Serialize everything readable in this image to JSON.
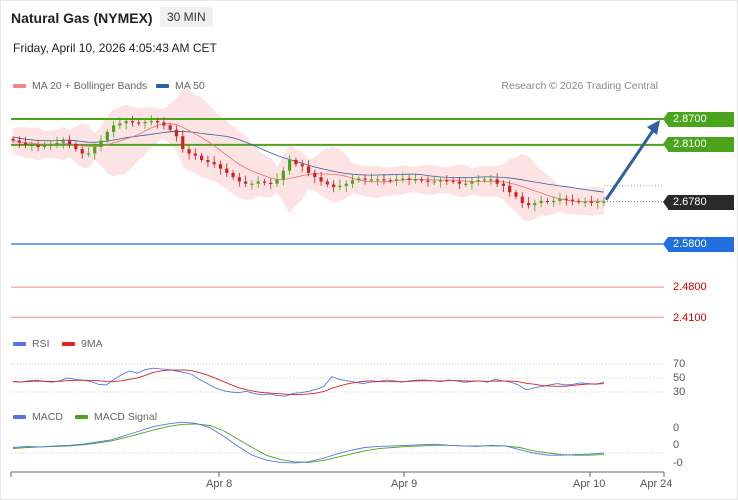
{
  "header": {
    "title": "Natural Gas (NYMEX)",
    "timeframe": "30 MIN",
    "datetime": "Friday, April 10, 2026 4:05:43 AM CET"
  },
  "legend": {
    "ma20_label": "MA 20 + Bollinger Bands",
    "ma50_label": "MA 50",
    "credit": "Research © 2026 Trading Central"
  },
  "levels": {
    "r2": "2.8700",
    "r1": "2.8100",
    "last": "2.6780",
    "s1": "2.5800",
    "s2": "2.4800",
    "s3": "2.4100"
  },
  "rsi": {
    "label": "RSI",
    "ma_label": "9MA",
    "ticks": [
      "70",
      "50",
      "30"
    ]
  },
  "macd": {
    "label": "MACD",
    "signal_label": "MACD Signal",
    "ticks": [
      "0",
      "0",
      "-0"
    ]
  },
  "xaxis": {
    "labels": [
      "Apr 8",
      "Apr 9",
      "Apr 10",
      "Apr 24"
    ]
  },
  "colors": {
    "resistance": "#4aa51c",
    "support": "#1f6fe0",
    "support_lower": "#e06060",
    "ma20": "#e87070",
    "ma50": "#3060a0",
    "bollinger": "#fde3e3",
    "candle_up": "#4aa51c",
    "candle_down": "#cc2222",
    "forecast_arrow": "#2f5f9e",
    "rsi_line": "#5577dd",
    "rsi_ma": "#dd2222",
    "macd_line": "#5577dd",
    "macd_signal": "#4aa51c"
  },
  "chart_data": {
    "type": "candlestick",
    "instrument": "Natural Gas (NYMEX)",
    "interval": "30 MIN",
    "x_labels": [
      "Apr 8",
      "Apr 9",
      "Apr 10",
      "Apr 24"
    ],
    "price_range": [
      2.39,
      2.91
    ],
    "close_path": [
      2.82,
      2.815,
      2.81,
      2.81,
      2.805,
      2.81,
      2.81,
      2.815,
      2.82,
      2.812,
      2.8,
      2.79,
      2.79,
      2.805,
      2.82,
      2.84,
      2.855,
      2.86,
      2.865,
      2.862,
      2.86,
      2.863,
      2.865,
      2.862,
      2.855,
      2.845,
      2.83,
      2.8,
      2.79,
      2.785,
      2.775,
      2.77,
      2.765,
      2.755,
      2.745,
      2.735,
      2.725,
      2.72,
      2.72,
      2.725,
      2.722,
      2.72,
      2.73,
      2.75,
      2.775,
      2.765,
      2.76,
      2.745,
      2.735,
      2.725,
      2.718,
      2.712,
      2.715,
      2.72,
      2.728,
      2.732,
      2.73,
      2.73,
      2.73,
      2.728,
      2.727,
      2.73,
      2.732,
      2.73,
      2.73,
      2.727,
      2.725,
      2.725,
      2.728,
      2.727,
      2.725,
      2.72,
      2.72,
      2.725,
      2.728,
      2.73,
      2.73,
      2.72,
      2.715,
      2.7,
      2.69,
      2.675,
      2.67,
      2.675,
      2.68,
      2.678,
      2.68,
      2.685,
      2.683,
      2.68,
      2.678,
      2.678,
      2.676,
      2.678,
      2.678
    ],
    "resistance": [
      2.87,
      2.81
    ],
    "last": 2.678,
    "support": [
      2.58,
      2.48,
      2.41
    ],
    "forecast": "bullish toward 2.8700",
    "rsi_levels": [
      70,
      50,
      30
    ],
    "rsi_range": [
      0,
      100
    ],
    "rsi_path": [
      45,
      44,
      46,
      47,
      45,
      44,
      46,
      50,
      48,
      47,
      45,
      41,
      40,
      48,
      55,
      60,
      57,
      62,
      64,
      63,
      62,
      60,
      58,
      55,
      48,
      42,
      36,
      32,
      30,
      29,
      31,
      28,
      26,
      27,
      25,
      24,
      28,
      29,
      31,
      34,
      38,
      52,
      48,
      46,
      44,
      42,
      44,
      45,
      47,
      46,
      44,
      46,
      47,
      47,
      46,
      45,
      47,
      46,
      44,
      45,
      46,
      44,
      48,
      46,
      44,
      40,
      33,
      36,
      38,
      40,
      42,
      40,
      41,
      43,
      42,
      41,
      44
    ],
    "macd_path": [
      0.01,
      0.012,
      0.011,
      0.013,
      0.014,
      0.016,
      0.02,
      0.024,
      0.032,
      0.04,
      0.048,
      0.053,
      0.056,
      0.054,
      0.046,
      0.03,
      0.012,
      -0.004,
      -0.013,
      -0.017,
      -0.018,
      -0.016,
      -0.01,
      -0.002,
      0.005,
      0.01,
      0.012,
      0.013,
      0.014,
      0.015,
      0.016,
      0.014,
      0.013,
      0.012,
      0.014,
      0.013,
      0.006,
      0.0,
      -0.004,
      -0.004,
      -0.003,
      -0.002,
      0.0
    ],
    "signal_path": [
      0.008,
      0.01,
      0.011,
      0.012,
      0.013,
      0.015,
      0.018,
      0.022,
      0.028,
      0.035,
      0.042,
      0.048,
      0.052,
      0.053,
      0.05,
      0.04,
      0.025,
      0.01,
      -0.004,
      -0.012,
      -0.016,
      -0.017,
      -0.014,
      -0.008,
      -0.002,
      0.004,
      0.008,
      0.01,
      0.012,
      0.013,
      0.014,
      0.014,
      0.013,
      0.013,
      0.013,
      0.013,
      0.01,
      0.004,
      0.0,
      -0.003,
      -0.004,
      -0.004,
      -0.003
    ]
  }
}
